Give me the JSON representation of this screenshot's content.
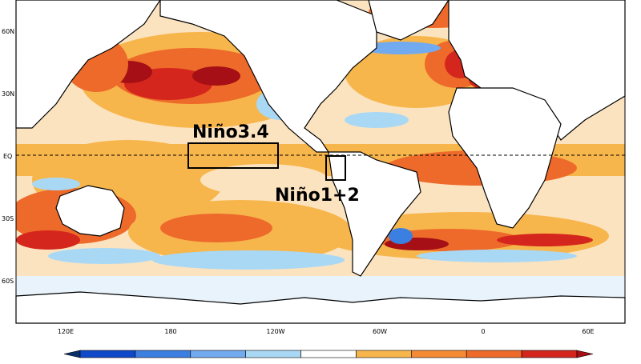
{
  "regions": [
    {
      "id": "nino34",
      "label": "Niño3.4",
      "lon_range": [
        -170,
        -120
      ],
      "lat_range": [
        -5,
        5
      ]
    },
    {
      "id": "nino12",
      "label": "Niño1+2",
      "lon_range": [
        -90,
        -80
      ],
      "lat_range": [
        -10,
        0
      ]
    }
  ],
  "equator_label": "EQ",
  "lat_labels": [
    {
      "lat": 60,
      "text": "60N"
    },
    {
      "lat": 30,
      "text": "30N"
    },
    {
      "lat": 0,
      "text": "EQ"
    },
    {
      "lat": -30,
      "text": "30S"
    },
    {
      "lat": -60,
      "text": "60S"
    }
  ],
  "lon_labels": [
    {
      "lon": 120,
      "text": "120E"
    },
    {
      "lon": 180,
      "text": "180"
    },
    {
      "lon": -120,
      "text": "120W"
    },
    {
      "lon": -60,
      "text": "60W"
    },
    {
      "lon": 0,
      "text": "0"
    },
    {
      "lon": 60,
      "text": "60E"
    }
  ],
  "colorbar": {
    "colors": [
      "#08306b",
      "#0f48c8",
      "#3b7fe0",
      "#72aaef",
      "#a9d8f5",
      "#ffffff",
      "#f7b64c",
      "#f48a34",
      "#ee6a2a",
      "#d4261c",
      "#a50f15"
    ]
  },
  "style": {
    "land_color": "#ffffff",
    "coast_color": "#000000"
  }
}
